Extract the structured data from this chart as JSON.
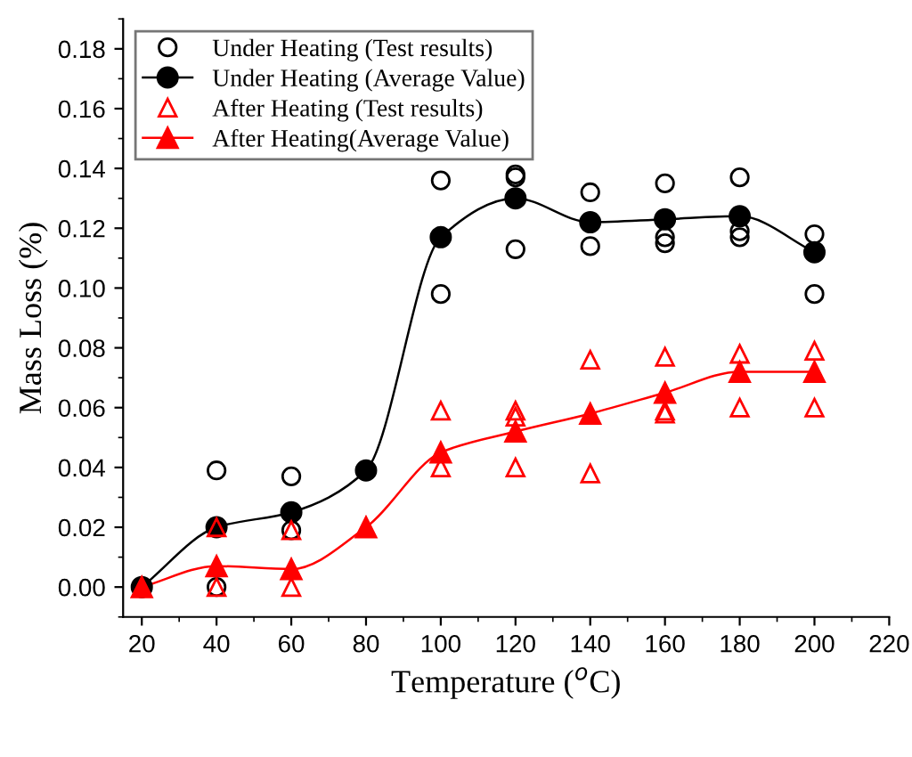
{
  "chart_data": {
    "type": "line",
    "xlabel": "Temperature ($^{o}$C)",
    "ylabel": "Mass Loss (%)",
    "xlim": [
      15,
      220
    ],
    "xticks": [
      20,
      40,
      60,
      80,
      100,
      120,
      140,
      160,
      180,
      200,
      220
    ],
    "ylim": [
      -0.01,
      0.19
    ],
    "yticks": [
      {
        "value": 0,
        "label": "0.00"
      },
      0.02,
      0.04,
      0.06,
      0.08,
      {
        "value": 0.1,
        "label": "0.10"
      },
      0.12,
      0.14,
      0.16,
      0.18
    ],
    "legend": "top left",
    "grid": false,
    "series": [
      {
        "name": "Under Heating (Test results)",
        "type": "scatter",
        "marker": "circle",
        "color": "#000000",
        "x": [
          40,
          40,
          40,
          60,
          60,
          80,
          100,
          100,
          120,
          120,
          120,
          140,
          140,
          160,
          160,
          160,
          180,
          180,
          180,
          200,
          200
        ],
        "values": [
          0.039,
          0.02,
          0.0,
          0.037,
          0.019,
          0.039,
          0.136,
          0.098,
          0.138,
          0.137,
          0.113,
          0.132,
          0.114,
          0.135,
          0.117,
          0.115,
          0.137,
          0.119,
          0.117,
          0.118,
          0.098
        ]
      },
      {
        "name": "Under Heating (Average Value)",
        "marker": "circle",
        "color": "#000000",
        "x": [
          20,
          40,
          60,
          80,
          100,
          120,
          140,
          160,
          180,
          200
        ],
        "values": [
          0,
          0.02,
          0.025,
          0.039,
          0.117,
          0.13,
          0.122,
          0.123,
          0.124,
          0.112
        ]
      },
      {
        "name": "After Heating (Test results)",
        "type": "scatter",
        "marker": "triangle",
        "color": "#ff0000",
        "x": [
          40,
          40,
          60,
          60,
          100,
          100,
          120,
          120,
          120,
          140,
          140,
          160,
          160,
          160,
          180,
          180,
          200,
          200
        ],
        "values": [
          0.02,
          0.0,
          0.019,
          0.0,
          0.059,
          0.04,
          0.059,
          0.057,
          0.04,
          0.076,
          0.038,
          0.077,
          0.059,
          0.058,
          0.078,
          0.06,
          0.079,
          0.06
        ]
      },
      {
        "name": "After Heating(Average Value)",
        "marker": "triangle",
        "color": "#ff0000",
        "x": [
          20,
          40,
          60,
          80,
          100,
          120,
          140,
          160,
          180,
          200
        ],
        "values": [
          0,
          0.007,
          0.006,
          0.02,
          0.045,
          0.052,
          0.058,
          0.065,
          0.072,
          0.072
        ]
      }
    ]
  }
}
